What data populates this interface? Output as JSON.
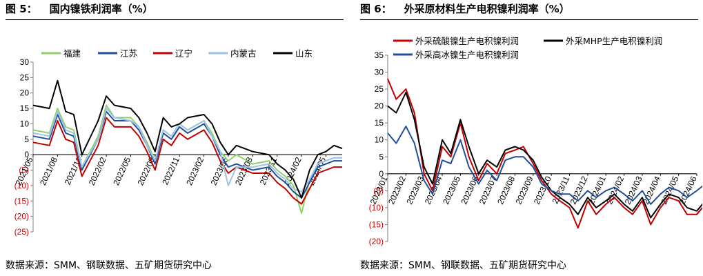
{
  "left": {
    "fig_label": "图 5：",
    "title": "国内镍铁利润率（%）",
    "source": "数据来源：SMM、钢联数据、五矿期货研究中心"
  },
  "right": {
    "fig_label": "图 6：",
    "title": "外采原材料生产电积镍利润率（%）",
    "source": "数据来源：SMM、钢联数据、五矿期货研究中心"
  },
  "colors": {
    "red": "#c00000",
    "black": "#000000",
    "navy": "#1f4e9a",
    "lightblue": "#9dc3e6",
    "green": "#8fd16a"
  },
  "chart_data": [
    {
      "type": "line",
      "title": "国内镍铁利润率（%）",
      "ylim": [
        -25,
        30
      ],
      "yticks": [
        30,
        25,
        20,
        15,
        10,
        5,
        0,
        -5,
        -10,
        -15,
        -20,
        -25
      ],
      "ytick_labels": [
        "30",
        "25",
        "20",
        "15",
        "10",
        "5",
        "0",
        "(5)",
        "(10)",
        "(15)",
        "(20)",
        "(25)"
      ],
      "negative_tick_color": "#c00000",
      "xlim": [
        "2021-05",
        "2024-07"
      ],
      "xtick_labels": [
        "2021/05",
        "2021/08",
        "2021/11",
        "2022/02",
        "2022/05",
        "2022/08",
        "2022/11",
        "2023/02",
        "2023/05",
        "2023/08",
        "2023/11",
        "2024/02",
        "2024/05"
      ],
      "legend": "top",
      "series": [
        {
          "name": "福建",
          "color": "#8fd16a",
          "x": [
            "2021-05",
            "2021-07",
            "2021-08",
            "2021-09",
            "2021-10",
            "2021-11",
            "2022-01",
            "2022-02",
            "2022-03",
            "2022-05",
            "2022-06",
            "2022-07",
            "2022-08",
            "2022-09",
            "2022-10",
            "2022-11",
            "2022-12",
            "2023-02",
            "2023-03",
            "2023-04",
            "2023-05",
            "2023-06",
            "2023-08",
            "2023-10",
            "2023-11",
            "2023-12",
            "2024-01",
            "2024-02",
            "2024-03",
            "2024-04",
            "2024-05",
            "2024-06",
            "2024-07"
          ],
          "values": [
            8,
            7,
            15,
            9,
            8,
            -4,
            6,
            16,
            12,
            12,
            9,
            4,
            -2,
            8,
            6,
            10,
            8,
            11,
            7,
            1,
            -2,
            0,
            -3,
            -2,
            -5,
            -7,
            -10,
            -19,
            -8,
            -3,
            -2,
            -1,
            -1
          ]
        },
        {
          "name": "江苏",
          "color": "#1f4e9a",
          "x": [
            "2021-05",
            "2021-07",
            "2021-08",
            "2021-09",
            "2021-10",
            "2021-11",
            "2022-01",
            "2022-02",
            "2022-03",
            "2022-05",
            "2022-06",
            "2022-07",
            "2022-08",
            "2022-09",
            "2022-10",
            "2022-11",
            "2022-12",
            "2023-02",
            "2023-03",
            "2023-04",
            "2023-05",
            "2023-06",
            "2023-08",
            "2023-10",
            "2023-11",
            "2023-12",
            "2024-01",
            "2024-02",
            "2024-03",
            "2024-04",
            "2024-05",
            "2024-06",
            "2024-07"
          ],
          "values": [
            6,
            5,
            13,
            7,
            6,
            -5,
            5,
            14,
            11,
            11,
            8,
            3,
            -3,
            7,
            5,
            9,
            7,
            10,
            6,
            0,
            -4,
            -3,
            -5,
            -4,
            -7,
            -9,
            -12,
            -14,
            -9,
            -4,
            -3,
            -2,
            -2
          ]
        },
        {
          "name": "辽宁",
          "color": "#c00000",
          "x": [
            "2021-05",
            "2021-07",
            "2021-08",
            "2021-09",
            "2021-10",
            "2021-11",
            "2022-01",
            "2022-02",
            "2022-03",
            "2022-05",
            "2022-06",
            "2022-07",
            "2022-08",
            "2022-09",
            "2022-10",
            "2022-11",
            "2022-12",
            "2023-02",
            "2023-03",
            "2023-04",
            "2023-05",
            "2023-06",
            "2023-08",
            "2023-10",
            "2023-11",
            "2023-12",
            "2024-01",
            "2024-02",
            "2024-03",
            "2024-04",
            "2024-05",
            "2024-06",
            "2024-07"
          ],
          "values": [
            4,
            3,
            11,
            5,
            4,
            -7,
            3,
            12,
            9,
            9,
            6,
            1,
            -5,
            5,
            3,
            7,
            5,
            8,
            4,
            -2,
            -6,
            -4,
            -6,
            -6,
            -9,
            -11,
            -14,
            -16,
            -11,
            -6,
            -5,
            -4,
            -4
          ]
        },
        {
          "name": "内蒙古",
          "color": "#9dc3e6",
          "x": [
            "2021-05",
            "2021-07",
            "2021-08",
            "2021-09",
            "2021-10",
            "2021-11",
            "2022-01",
            "2022-02",
            "2022-03",
            "2022-05",
            "2022-06",
            "2022-07",
            "2022-08",
            "2022-09",
            "2022-10",
            "2022-11",
            "2022-12",
            "2023-02",
            "2023-03",
            "2023-04",
            "2023-05",
            "2023-06",
            "2023-08",
            "2023-10",
            "2023-11",
            "2023-12",
            "2024-01",
            "2024-02",
            "2024-03",
            "2024-04",
            "2024-05",
            "2024-06",
            "2024-07"
          ],
          "values": [
            7,
            6,
            14,
            8,
            7,
            -4,
            5,
            15,
            12,
            11,
            9,
            3,
            -2,
            8,
            6,
            10,
            8,
            11,
            6,
            1,
            -10,
            -4,
            -4,
            -3,
            -6,
            -8,
            -11,
            -12,
            -8,
            -3,
            -2,
            -1,
            -1
          ]
        },
        {
          "name": "山东",
          "color": "#000000",
          "x": [
            "2021-05",
            "2021-07",
            "2021-08",
            "2021-09",
            "2021-10",
            "2021-11",
            "2022-01",
            "2022-02",
            "2022-03",
            "2022-05",
            "2022-06",
            "2022-07",
            "2022-08",
            "2022-09",
            "2022-10",
            "2022-11",
            "2022-12",
            "2023-02",
            "2023-03",
            "2023-04",
            "2023-05",
            "2023-06",
            "2023-08",
            "2023-10",
            "2023-11",
            "2023-12",
            "2024-01",
            "2024-02",
            "2024-03",
            "2024-04",
            "2024-05",
            "2024-06",
            "2024-07"
          ],
          "values": [
            16,
            15,
            24,
            14,
            13,
            0,
            11,
            19,
            16,
            15,
            12,
            7,
            1,
            12,
            9,
            10,
            12,
            13,
            10,
            4,
            0,
            3,
            1,
            0,
            -3,
            -5,
            -8,
            -14,
            -5,
            0,
            1,
            3,
            2
          ]
        }
      ]
    },
    {
      "type": "line",
      "title": "外采原材料生产电积镍利润率（%）",
      "ylim": [
        -20,
        35
      ],
      "yticks": [
        35,
        30,
        25,
        20,
        15,
        10,
        5,
        0,
        -5,
        -10,
        -15,
        -20
      ],
      "ytick_labels": [
        "35",
        "30",
        "25",
        "20",
        "15",
        "10",
        "5",
        "0",
        "(5)",
        "(10)",
        "(15)",
        "(20)"
      ],
      "negative_tick_color": "#c00000",
      "xlim": [
        "2023-01",
        "2024-06"
      ],
      "xtick_labels": [
        "2023/01",
        "2023/02",
        "2023/03",
        "2023/04",
        "2023/05",
        "2023/06",
        "2023/07",
        "2023/08",
        "2023/09",
        "2023/10",
        "2023/11",
        "2023/12",
        "2024/01",
        "2024/02",
        "2024/03",
        "2024/04",
        "2024/05",
        "2024/06"
      ],
      "legend": "top",
      "series": [
        {
          "name": "外采硫酸镍生产电积镍利润",
          "color": "#c00000",
          "x": [
            "2023-01-01",
            "2023-01-15",
            "2023-02-01",
            "2023-02-15",
            "2023-03-01",
            "2023-03-15",
            "2023-04-01",
            "2023-04-15",
            "2023-05-01",
            "2023-05-15",
            "2023-06-01",
            "2023-06-15",
            "2023-07-01",
            "2023-07-15",
            "2023-08-01",
            "2023-08-15",
            "2023-09-01",
            "2023-09-15",
            "2023-10-01",
            "2023-10-15",
            "2023-11-01",
            "2023-11-15",
            "2023-12-01",
            "2023-12-15",
            "2024-01-01",
            "2024-01-15",
            "2024-02-01",
            "2024-02-15",
            "2024-03-01",
            "2024-03-15",
            "2024-04-01",
            "2024-04-15",
            "2024-05-01",
            "2024-05-15",
            "2024-06-01",
            "2024-06-15"
          ],
          "values": [
            28,
            22,
            25,
            18,
            0,
            -5,
            8,
            5,
            15,
            5,
            -2,
            3,
            0,
            6,
            7,
            8,
            3,
            -2,
            -6,
            -8,
            -10,
            -16,
            -8,
            -12,
            -9,
            -7,
            -10,
            -12,
            -8,
            -15,
            -10,
            -7,
            -8,
            -12,
            -12,
            -9
          ]
        },
        {
          "name": "外采MHP生产电积镍利润",
          "color": "#000000",
          "x": [
            "2023-01-01",
            "2023-01-15",
            "2023-02-01",
            "2023-02-15",
            "2023-03-01",
            "2023-03-15",
            "2023-04-01",
            "2023-04-15",
            "2023-05-01",
            "2023-05-15",
            "2023-06-01",
            "2023-06-15",
            "2023-07-01",
            "2023-07-15",
            "2023-08-01",
            "2023-08-15",
            "2023-09-01",
            "2023-09-15",
            "2023-10-01",
            "2023-10-15",
            "2023-11-01",
            "2023-11-15",
            "2023-12-01",
            "2023-12-15",
            "2024-01-01",
            "2024-01-15",
            "2024-02-01",
            "2024-02-15",
            "2024-03-01",
            "2024-03-15",
            "2024-04-01",
            "2024-04-15",
            "2024-05-01",
            "2024-05-15",
            "2024-06-01",
            "2024-06-15"
          ],
          "values": [
            20,
            18,
            24,
            16,
            2,
            -3,
            10,
            6,
            16,
            8,
            0,
            4,
            2,
            7,
            8,
            7,
            4,
            -1,
            -5,
            -7,
            -9,
            -12,
            -7,
            -10,
            -8,
            -6,
            -9,
            -11,
            -7,
            -13,
            -9,
            -6,
            -7,
            -10,
            -11,
            -8
          ]
        },
        {
          "name": "外采高冰镍生产电积镍利润",
          "color": "#1f4e9a",
          "x": [
            "2023-01-01",
            "2023-01-15",
            "2023-02-01",
            "2023-02-15",
            "2023-03-01",
            "2023-03-15",
            "2023-04-01",
            "2023-04-15",
            "2023-05-01",
            "2023-05-15",
            "2023-06-01",
            "2023-06-15",
            "2023-07-01",
            "2023-07-15",
            "2023-08-01",
            "2023-08-15",
            "2023-09-01",
            "2023-09-15",
            "2023-10-01",
            "2023-10-15",
            "2023-11-01",
            "2023-11-15",
            "2023-12-01",
            "2023-12-15",
            "2024-01-01",
            "2024-01-15",
            "2024-02-01",
            "2024-02-15",
            "2024-03-01",
            "2024-03-15",
            "2024-04-01",
            "2024-04-15",
            "2024-05-01",
            "2024-05-15",
            "2024-06-01",
            "2024-06-15"
          ],
          "values": [
            12,
            9,
            14,
            9,
            -2,
            -6,
            4,
            3,
            10,
            2,
            -3,
            1,
            -2,
            4,
            5,
            5,
            2,
            -3,
            -5,
            -6,
            -6,
            -8,
            -5,
            -7,
            -5,
            -4,
            -6,
            -8,
            -5,
            -9,
            -6,
            -4,
            -5,
            -7,
            -5,
            -3
          ]
        }
      ]
    }
  ]
}
